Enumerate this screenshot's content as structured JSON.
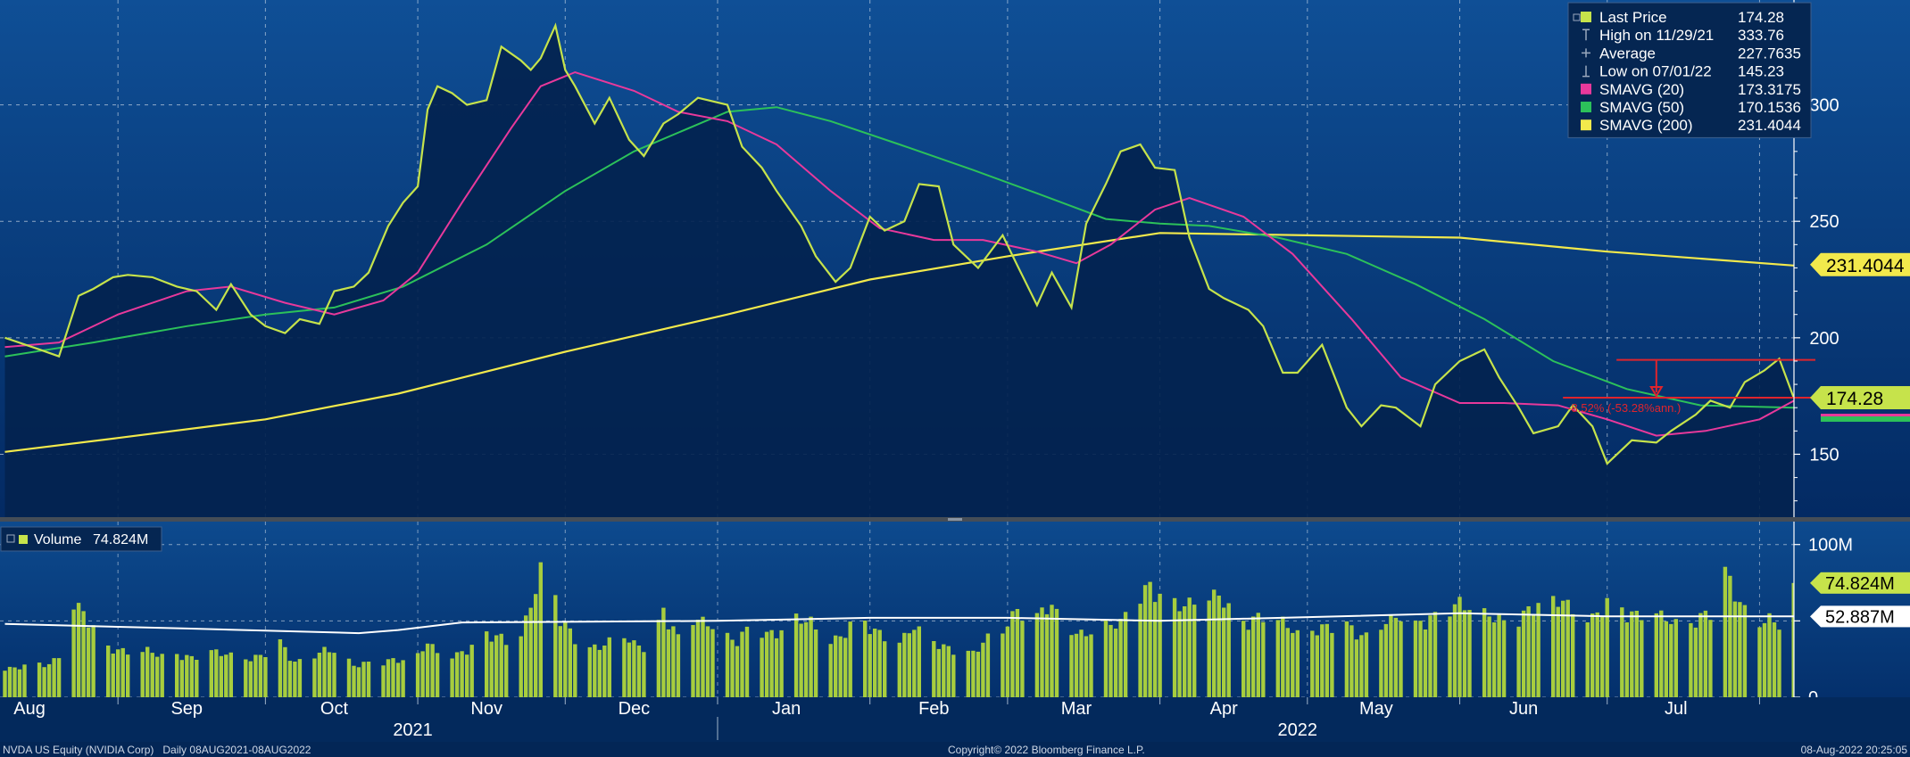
{
  "chart_data": {
    "type": "line",
    "title": "",
    "x_range": [
      "2021-08-08",
      "2022-08-08"
    ],
    "price_ylim": [
      123,
      345
    ],
    "price_y_ticks": [
      150,
      200,
      250,
      300
    ],
    "volume_ylim": [
      0,
      115
    ],
    "volume_y_ticks": [
      0,
      50,
      100
    ],
    "volume_y_tick_labels": [
      "0",
      "",
      "100M"
    ],
    "grid": true,
    "legend_position": "top-right",
    "month_labels": [
      {
        "label": "Aug",
        "date": "2021-08-14"
      },
      {
        "label": "Sep",
        "date": "2021-09-15"
      },
      {
        "label": "Oct",
        "date": "2021-10-15"
      },
      {
        "label": "Nov",
        "date": "2021-11-15"
      },
      {
        "label": "Dec",
        "date": "2021-12-15"
      },
      {
        "label": "Jan",
        "date": "2022-01-15"
      },
      {
        "label": "Feb",
        "date": "2022-02-14"
      },
      {
        "label": "Mar",
        "date": "2022-03-15"
      },
      {
        "label": "Apr",
        "date": "2022-04-14"
      },
      {
        "label": "May",
        "date": "2022-05-15"
      },
      {
        "label": "Jun",
        "date": "2022-06-14"
      },
      {
        "label": "Jul",
        "date": "2022-07-15"
      }
    ],
    "month_boundaries": [
      "2021-09-01",
      "2021-10-01",
      "2021-11-01",
      "2021-12-01",
      "2022-01-01",
      "2022-02-01",
      "2022-03-01",
      "2022-04-01",
      "2022-05-01",
      "2022-06-01",
      "2022-07-01",
      "2022-08-01"
    ],
    "year_labels": [
      {
        "label": "2021",
        "date": "2021-10-31"
      },
      {
        "label": "2022",
        "date": "2022-04-29"
      }
    ],
    "year_boundary": "2022-01-01",
    "price_series": [
      {
        "name": "Last Price",
        "color": "#c6e34b",
        "points": [
          [
            "2021-08-09",
            200
          ],
          [
            "2021-08-16",
            195
          ],
          [
            "2021-08-20",
            192
          ],
          [
            "2021-08-24",
            218
          ],
          [
            "2021-08-27",
            221
          ],
          [
            "2021-08-31",
            226
          ],
          [
            "2021-09-03",
            227
          ],
          [
            "2021-09-08",
            226
          ],
          [
            "2021-09-13",
            222
          ],
          [
            "2021-09-17",
            220
          ],
          [
            "2021-09-21",
            212
          ],
          [
            "2021-09-24",
            223
          ],
          [
            "2021-09-28",
            210
          ],
          [
            "2021-10-01",
            205
          ],
          [
            "2021-10-05",
            202
          ],
          [
            "2021-10-08",
            208
          ],
          [
            "2021-10-12",
            206
          ],
          [
            "2021-10-15",
            220
          ],
          [
            "2021-10-19",
            222
          ],
          [
            "2021-10-22",
            228
          ],
          [
            "2021-10-26",
            248
          ],
          [
            "2021-10-29",
            258
          ],
          [
            "2021-11-01",
            265
          ],
          [
            "2021-11-03",
            298
          ],
          [
            "2021-11-05",
            308
          ],
          [
            "2021-11-08",
            305
          ],
          [
            "2021-11-11",
            300
          ],
          [
            "2021-11-15",
            302
          ],
          [
            "2021-11-18",
            325
          ],
          [
            "2021-11-22",
            319
          ],
          [
            "2021-11-24",
            315
          ],
          [
            "2021-11-26",
            320
          ],
          [
            "2021-11-29",
            334
          ],
          [
            "2021-12-01",
            315
          ],
          [
            "2021-12-03",
            308
          ],
          [
            "2021-12-07",
            292
          ],
          [
            "2021-12-10",
            303
          ],
          [
            "2021-12-14",
            285
          ],
          [
            "2021-12-17",
            278
          ],
          [
            "2021-12-21",
            292
          ],
          [
            "2021-12-24",
            296
          ],
          [
            "2021-12-28",
            303
          ],
          [
            "2022-01-03",
            300
          ],
          [
            "2022-01-06",
            282
          ],
          [
            "2022-01-10",
            273
          ],
          [
            "2022-01-13",
            263
          ],
          [
            "2022-01-18",
            248
          ],
          [
            "2022-01-21",
            235
          ],
          [
            "2022-01-25",
            224
          ],
          [
            "2022-01-28",
            230
          ],
          [
            "2022-02-01",
            252
          ],
          [
            "2022-02-04",
            246
          ],
          [
            "2022-02-08",
            250
          ],
          [
            "2022-02-11",
            266
          ],
          [
            "2022-02-15",
            265
          ],
          [
            "2022-02-18",
            240
          ],
          [
            "2022-02-23",
            230
          ],
          [
            "2022-02-28",
            244
          ],
          [
            "2022-03-03",
            231
          ],
          [
            "2022-03-07",
            214
          ],
          [
            "2022-03-10",
            228
          ],
          [
            "2022-03-14",
            213
          ],
          [
            "2022-03-17",
            249
          ],
          [
            "2022-03-21",
            266
          ],
          [
            "2022-03-24",
            280
          ],
          [
            "2022-03-28",
            283
          ],
          [
            "2022-03-31",
            273
          ],
          [
            "2022-04-04",
            272
          ],
          [
            "2022-04-07",
            243
          ],
          [
            "2022-04-11",
            221
          ],
          [
            "2022-04-14",
            217
          ],
          [
            "2022-04-19",
            212
          ],
          [
            "2022-04-22",
            205
          ],
          [
            "2022-04-26",
            185
          ],
          [
            "2022-04-29",
            185
          ],
          [
            "2022-05-04",
            197
          ],
          [
            "2022-05-09",
            170
          ],
          [
            "2022-05-12",
            162
          ],
          [
            "2022-05-16",
            171
          ],
          [
            "2022-05-19",
            170
          ],
          [
            "2022-05-24",
            162
          ],
          [
            "2022-05-27",
            180
          ],
          [
            "2022-06-01",
            190
          ],
          [
            "2022-06-06",
            195
          ],
          [
            "2022-06-09",
            183
          ],
          [
            "2022-06-13",
            170
          ],
          [
            "2022-06-16",
            159
          ],
          [
            "2022-06-21",
            162
          ],
          [
            "2022-06-24",
            171
          ],
          [
            "2022-06-28",
            162
          ],
          [
            "2022-07-01",
            146
          ],
          [
            "2022-07-06",
            156
          ],
          [
            "2022-07-11",
            155
          ],
          [
            "2022-07-14",
            160
          ],
          [
            "2022-07-19",
            167
          ],
          [
            "2022-07-22",
            173
          ],
          [
            "2022-07-26",
            170
          ],
          [
            "2022-07-29",
            181
          ],
          [
            "2022-08-02",
            186
          ],
          [
            "2022-08-05",
            191
          ],
          [
            "2022-08-08",
            174
          ]
        ]
      },
      {
        "name": "SMAVG (20)",
        "color": "#e8399b",
        "points": [
          [
            "2021-08-09",
            196
          ],
          [
            "2021-08-20",
            198
          ],
          [
            "2021-09-01",
            210
          ],
          [
            "2021-09-15",
            220
          ],
          [
            "2021-09-24",
            222
          ],
          [
            "2021-10-05",
            215
          ],
          [
            "2021-10-15",
            210
          ],
          [
            "2021-10-25",
            216
          ],
          [
            "2021-11-01",
            228
          ],
          [
            "2021-11-10",
            258
          ],
          [
            "2021-11-20",
            290
          ],
          [
            "2021-11-26",
            308
          ],
          [
            "2021-12-03",
            314
          ],
          [
            "2021-12-15",
            306
          ],
          [
            "2021-12-24",
            297
          ],
          [
            "2022-01-03",
            293
          ],
          [
            "2022-01-13",
            283
          ],
          [
            "2022-01-24",
            263
          ],
          [
            "2022-02-03",
            247
          ],
          [
            "2022-02-14",
            242
          ],
          [
            "2022-02-24",
            242
          ],
          [
            "2022-03-07",
            237
          ],
          [
            "2022-03-15",
            232
          ],
          [
            "2022-03-22",
            240
          ],
          [
            "2022-03-31",
            255
          ],
          [
            "2022-04-07",
            260
          ],
          [
            "2022-04-18",
            252
          ],
          [
            "2022-04-28",
            236
          ],
          [
            "2022-05-10",
            208
          ],
          [
            "2022-05-20",
            183
          ],
          [
            "2022-06-01",
            172
          ],
          [
            "2022-06-10",
            172
          ],
          [
            "2022-06-21",
            171
          ],
          [
            "2022-07-01",
            165
          ],
          [
            "2022-07-11",
            158
          ],
          [
            "2022-07-21",
            160
          ],
          [
            "2022-08-01",
            165
          ],
          [
            "2022-08-08",
            173
          ]
        ]
      },
      {
        "name": "SMAVG (50)",
        "color": "#2cc15a",
        "points": [
          [
            "2021-08-09",
            192
          ],
          [
            "2021-08-27",
            198
          ],
          [
            "2021-09-15",
            205
          ],
          [
            "2021-10-01",
            210
          ],
          [
            "2021-10-15",
            213
          ],
          [
            "2021-10-29",
            222
          ],
          [
            "2021-11-15",
            240
          ],
          [
            "2021-12-01",
            263
          ],
          [
            "2021-12-15",
            280
          ],
          [
            "2022-01-03",
            297
          ],
          [
            "2022-01-13",
            299
          ],
          [
            "2022-01-24",
            293
          ],
          [
            "2022-02-07",
            283
          ],
          [
            "2022-02-22",
            272
          ],
          [
            "2022-03-07",
            262
          ],
          [
            "2022-03-21",
            251
          ],
          [
            "2022-04-01",
            249
          ],
          [
            "2022-04-11",
            248
          ],
          [
            "2022-04-25",
            243
          ],
          [
            "2022-05-09",
            236
          ],
          [
            "2022-05-23",
            223
          ],
          [
            "2022-06-06",
            208
          ],
          [
            "2022-06-20",
            190
          ],
          [
            "2022-07-05",
            178
          ],
          [
            "2022-07-20",
            171
          ],
          [
            "2022-08-08",
            170
          ]
        ]
      },
      {
        "name": "SMAVG (200)",
        "color": "#f2e94c",
        "points": [
          [
            "2021-08-09",
            151
          ],
          [
            "2021-09-01",
            157
          ],
          [
            "2021-10-01",
            165
          ],
          [
            "2021-10-28",
            176
          ],
          [
            "2021-12-01",
            194
          ],
          [
            "2022-01-03",
            210
          ],
          [
            "2022-02-01",
            225
          ],
          [
            "2022-03-01",
            235
          ],
          [
            "2022-04-01",
            245
          ],
          [
            "2022-05-01",
            244
          ],
          [
            "2022-06-01",
            243
          ],
          [
            "2022-07-01",
            237
          ],
          [
            "2022-08-08",
            231
          ]
        ]
      }
    ],
    "legend": [
      {
        "icon": "square",
        "color": "#c6e34b",
        "label": "Last Price",
        "value": "174.28"
      },
      {
        "icon": "high-marker",
        "color": "#9aa8bd",
        "label": "High on 11/29/21",
        "value": "333.76"
      },
      {
        "icon": "average-marker",
        "color": "#9aa8bd",
        "label": "Average",
        "value": "227.7635"
      },
      {
        "icon": "low-marker",
        "color": "#9aa8bd",
        "label": "Low on 07/01/22",
        "value": "145.23"
      },
      {
        "icon": "square",
        "color": "#e8399b",
        "label": "SMAVG (20)",
        "value": "173.3175"
      },
      {
        "icon": "square",
        "color": "#2cc15a",
        "label": "SMAVG (50)",
        "value": "170.1536"
      },
      {
        "icon": "square",
        "color": "#f2e94c",
        "label": "SMAVG (200)",
        "value": "231.4044"
      }
    ],
    "price_axis_tags": [
      {
        "value": 231.4044,
        "label": "231.4044",
        "bg": "#f2e94c",
        "fg": "#000000"
      },
      {
        "value": 174.28,
        "label": "174.28",
        "bg": "#c6e34b",
        "fg": "#000000"
      }
    ],
    "annotation": {
      "color": "#e0242c",
      "start_date": "2022-06-22",
      "end_date": "2022-08-08",
      "upper_value": 190.5,
      "lower_value": 174.28,
      "arrow_date": "2022-07-11",
      "label": "-8.52% (-53.28%ann.)"
    },
    "volume_legend": {
      "label": "Volume",
      "value": "74.824M",
      "icon_color": "#c6e34b"
    },
    "volume_axis_tags": [
      {
        "value": 74.824,
        "label": "74.824M",
        "bg": "#c6e34b",
        "fg": "#000000"
      },
      {
        "value": 52.887,
        "label": "52.887M",
        "bg": "#ffffff",
        "fg": "#000000"
      }
    ],
    "volume_bar_color": "#a7cd3e",
    "volume_avg_color": "#ffffff",
    "volume_sample_interval_days": 3,
    "volume_samples": [
      20,
      18,
      22,
      20,
      25,
      60,
      50,
      32,
      30,
      28,
      30,
      26,
      27,
      25,
      30,
      28,
      26,
      24,
      28,
      35,
      22,
      25,
      30,
      29,
      20,
      22,
      23,
      24,
      22,
      35,
      25,
      27,
      32,
      40,
      38,
      30,
      58,
      92,
      50,
      38,
      31,
      33,
      41,
      34,
      30,
      55,
      38,
      50,
      47,
      40,
      35,
      48,
      40,
      42,
      50,
      48,
      35,
      38,
      50,
      45,
      38,
      35,
      45,
      37,
      32,
      30,
      28,
      38,
      42,
      56,
      46,
      60,
      50,
      40,
      41,
      46,
      47,
      65,
      70,
      62,
      58,
      60,
      65,
      63,
      45,
      50,
      52,
      48,
      40,
      42,
      45,
      50,
      40,
      38,
      48,
      52,
      46,
      50,
      55,
      60,
      55,
      52,
      48,
      50,
      58,
      60,
      62,
      50,
      50,
      60,
      55,
      52,
      55,
      50,
      45,
      48,
      56,
      80,
      60,
      45,
      50,
      44,
      42,
      38,
      48,
      47,
      40,
      42,
      37,
      44,
      46,
      40,
      42,
      40,
      42,
      40,
      42,
      38,
      40,
      40,
      48,
      44,
      43,
      40,
      43,
      39,
      38,
      36,
      32,
      54,
      52,
      44,
      44,
      39,
      38,
      36,
      42,
      75
    ],
    "volume_avg": [
      [
        "2021-08-09",
        48
      ],
      [
        "2021-09-15",
        45
      ],
      [
        "2021-10-20",
        42
      ],
      [
        "2021-10-28",
        44
      ],
      [
        "2021-11-10",
        49
      ],
      [
        "2022-01-01",
        50
      ],
      [
        "2022-02-01",
        52
      ],
      [
        "2022-03-01",
        52
      ],
      [
        "2022-04-01",
        50
      ],
      [
        "2022-06-01",
        55
      ],
      [
        "2022-07-01",
        53
      ],
      [
        "2022-08-08",
        53
      ]
    ]
  },
  "footer": {
    "ticker": "NVDA US Equity (NVIDIA Corp)   Daily 08AUG2021-08AUG2022",
    "copyright": "Copyright© 2022 Bloomberg Finance L.P.",
    "timestamp": "08-Aug-2022 20:25:05"
  }
}
